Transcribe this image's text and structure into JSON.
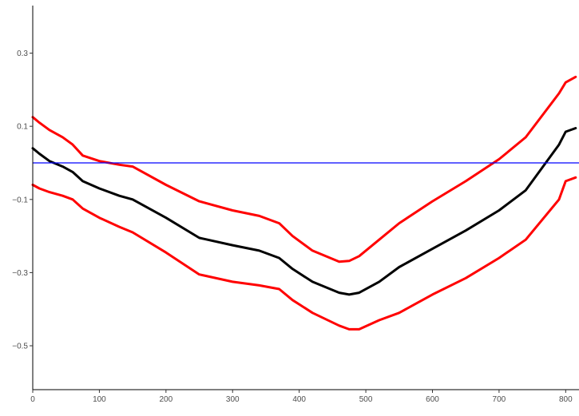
{
  "chart_data": {
    "type": "line",
    "title": "",
    "xlabel": "",
    "ylabel": "",
    "xlim": [
      0,
      820
    ],
    "ylim": [
      -0.62,
      0.43
    ],
    "x_ticks": [
      0,
      100,
      200,
      300,
      400,
      500,
      600,
      700,
      800
    ],
    "x_tick_labels": [
      "0",
      "100",
      "200",
      "300",
      "400",
      "500",
      "600",
      "700",
      "800"
    ],
    "y_ticks": [
      0.3,
      0.1,
      -0.1,
      -0.3,
      -0.5
    ],
    "y_tick_labels": [
      "0.3",
      "0.1",
      "−0.1",
      "−0.3",
      "−0.5"
    ],
    "grid": false,
    "reference_line": {
      "y": 0,
      "color": "#0000ff"
    },
    "series": [
      {
        "color": "#ff0000",
        "x": [
          0,
          10,
          25,
          45,
          60,
          75,
          100,
          130,
          150,
          200,
          250,
          300,
          340,
          370,
          390,
          420,
          460,
          475,
          490,
          520,
          550,
          600,
          650,
          700,
          740,
          790,
          800,
          815
        ],
        "y": [
          0.125,
          0.11,
          0.09,
          0.07,
          0.05,
          0.02,
          0.005,
          -0.005,
          -0.01,
          -0.06,
          -0.105,
          -0.13,
          -0.145,
          -0.165,
          -0.2,
          -0.24,
          -0.27,
          -0.268,
          -0.255,
          -0.21,
          -0.165,
          -0.105,
          -0.05,
          0.01,
          0.07,
          0.19,
          0.22,
          0.235
        ]
      },
      {
        "color": "#000000",
        "x": [
          0,
          10,
          25,
          45,
          60,
          75,
          100,
          130,
          150,
          200,
          250,
          300,
          340,
          370,
          390,
          420,
          460,
          475,
          490,
          520,
          550,
          600,
          650,
          700,
          740,
          790,
          800,
          815
        ],
        "y": [
          0.04,
          0.025,
          0.005,
          -0.01,
          -0.025,
          -0.05,
          -0.07,
          -0.09,
          -0.1,
          -0.15,
          -0.205,
          -0.225,
          -0.24,
          -0.26,
          -0.29,
          -0.325,
          -0.355,
          -0.36,
          -0.355,
          -0.325,
          -0.285,
          -0.235,
          -0.185,
          -0.13,
          -0.075,
          0.05,
          0.085,
          0.095
        ]
      },
      {
        "color": "#ff0000",
        "x": [
          0,
          10,
          25,
          45,
          60,
          75,
          100,
          130,
          150,
          200,
          250,
          300,
          340,
          370,
          390,
          420,
          460,
          475,
          490,
          520,
          550,
          600,
          650,
          700,
          740,
          790,
          800,
          815
        ],
        "y": [
          -0.06,
          -0.07,
          -0.08,
          -0.09,
          -0.1,
          -0.125,
          -0.15,
          -0.175,
          -0.19,
          -0.245,
          -0.305,
          -0.325,
          -0.335,
          -0.345,
          -0.375,
          -0.41,
          -0.445,
          -0.455,
          -0.455,
          -0.43,
          -0.41,
          -0.36,
          -0.315,
          -0.26,
          -0.21,
          -0.1,
          -0.05,
          -0.04
        ]
      }
    ]
  }
}
